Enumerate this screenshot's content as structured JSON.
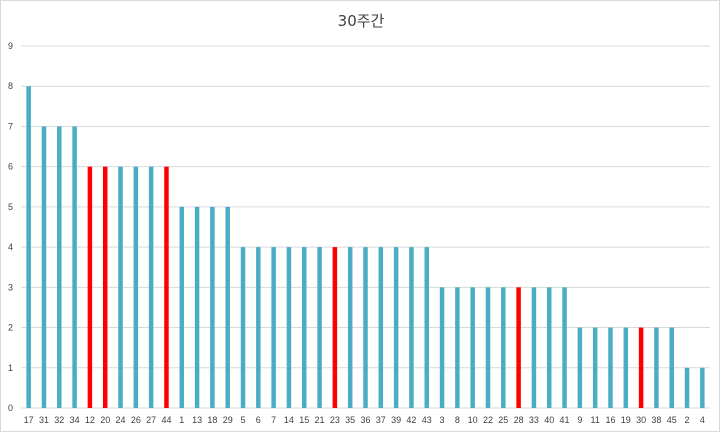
{
  "chart_data": {
    "type": "bar",
    "title": "30주간",
    "xlabel": "",
    "ylabel": "",
    "ylim": [
      0,
      9
    ],
    "yticks": [
      0,
      1,
      2,
      3,
      4,
      5,
      6,
      7,
      8,
      9
    ],
    "grid": true,
    "legend": "none",
    "colors": {
      "default": "#4bacc6",
      "highlight": "#ff0000",
      "grid": "#d9d9d9",
      "axis_text": "#404040"
    },
    "categories": [
      "17",
      "31",
      "32",
      "34",
      "12",
      "20",
      "24",
      "26",
      "27",
      "44",
      "1",
      "13",
      "18",
      "29",
      "5",
      "6",
      "7",
      "14",
      "15",
      "21",
      "23",
      "35",
      "36",
      "37",
      "39",
      "42",
      "43",
      "3",
      "8",
      "10",
      "22",
      "25",
      "28",
      "33",
      "40",
      "41",
      "9",
      "11",
      "16",
      "19",
      "30",
      "38",
      "45",
      "2",
      "4"
    ],
    "values": [
      8,
      7,
      7,
      7,
      6,
      6,
      6,
      6,
      6,
      6,
      5,
      5,
      5,
      5,
      4,
      4,
      4,
      4,
      4,
      4,
      4,
      4,
      4,
      4,
      4,
      4,
      4,
      3,
      3,
      3,
      3,
      3,
      3,
      3,
      3,
      3,
      2,
      2,
      2,
      2,
      2,
      2,
      2,
      1,
      1
    ],
    "highlighted_categories": [
      "12",
      "20",
      "44",
      "23",
      "28",
      "30"
    ]
  }
}
